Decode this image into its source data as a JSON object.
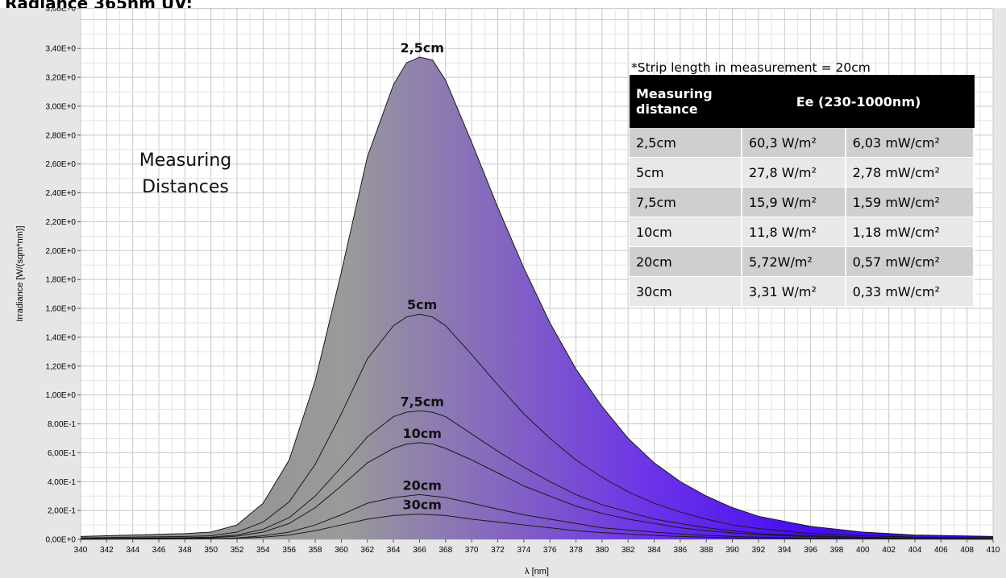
{
  "page": {
    "title": "Radiance 365nm UV:"
  },
  "chart_data": {
    "type": "area",
    "xlabel": "λ [nm]",
    "ylabel": "Irradiance [W/(sqm*nm)]",
    "xlim": [
      340,
      410
    ],
    "ylim": [
      0,
      3.68
    ],
    "x_ticks": [
      "340",
      "342",
      "344",
      "346",
      "348",
      "350",
      "352",
      "354",
      "356",
      "358",
      "360",
      "362",
      "364",
      "366",
      "368",
      "370",
      "372",
      "374",
      "376",
      "378",
      "380",
      "382",
      "384",
      "386",
      "388",
      "390",
      "392",
      "394",
      "396",
      "398",
      "400",
      "402",
      "404",
      "406",
      "408",
      "410"
    ],
    "y_ticks": [
      "0,00E+0",
      "2,00E-1",
      "4,00E-1",
      "6,00E-1",
      "8,00E-1",
      "1,00E+0",
      "1,20E+0",
      "1,40E+0",
      "1,60E+0",
      "1,80E+0",
      "2,00E+0",
      "2,20E+0",
      "2,40E+0",
      "2,60E+0",
      "2,80E+0",
      "3,00E+0",
      "3,20E+0",
      "3,40E+0",
      "3,68E+0"
    ],
    "y_tick_values": [
      0,
      0.2,
      0.4,
      0.6,
      0.8,
      1.0,
      1.2,
      1.4,
      1.6,
      1.8,
      2.0,
      2.2,
      2.4,
      2.6,
      2.8,
      3.0,
      3.2,
      3.4,
      3.68
    ],
    "grid": true,
    "fill_colors": {
      "gray": "#8c8c8c",
      "violet": "#7a42c6",
      "blue": "#3c0af0"
    },
    "x": [
      340,
      344,
      348,
      350,
      352,
      354,
      356,
      358,
      360,
      362,
      364,
      365,
      366,
      367,
      368,
      370,
      372,
      374,
      376,
      378,
      380,
      382,
      384,
      386,
      388,
      390,
      392,
      396,
      400,
      404,
      410
    ],
    "series": [
      {
        "name": "2,5cm",
        "values": [
          0.02,
          0.03,
          0.04,
          0.05,
          0.1,
          0.25,
          0.55,
          1.1,
          1.85,
          2.65,
          3.15,
          3.3,
          3.34,
          3.32,
          3.18,
          2.75,
          2.3,
          1.88,
          1.5,
          1.18,
          0.92,
          0.7,
          0.53,
          0.4,
          0.3,
          0.22,
          0.16,
          0.09,
          0.05,
          0.03,
          0.02
        ]
      },
      {
        "name": "5cm",
        "values": [
          0.01,
          0.015,
          0.02,
          0.025,
          0.05,
          0.12,
          0.26,
          0.52,
          0.87,
          1.25,
          1.48,
          1.54,
          1.56,
          1.54,
          1.48,
          1.28,
          1.07,
          0.87,
          0.7,
          0.55,
          0.43,
          0.33,
          0.25,
          0.19,
          0.14,
          0.1,
          0.075,
          0.04,
          0.025,
          0.015,
          0.01
        ]
      },
      {
        "name": "7,5cm",
        "values": [
          0.005,
          0.008,
          0.012,
          0.015,
          0.03,
          0.07,
          0.15,
          0.3,
          0.5,
          0.71,
          0.85,
          0.88,
          0.89,
          0.88,
          0.85,
          0.73,
          0.61,
          0.5,
          0.4,
          0.31,
          0.24,
          0.19,
          0.14,
          0.11,
          0.08,
          0.06,
          0.04,
          0.025,
          0.015,
          0.008,
          0.005
        ]
      },
      {
        "name": "10cm",
        "values": [
          0.004,
          0.006,
          0.009,
          0.011,
          0.022,
          0.05,
          0.11,
          0.22,
          0.37,
          0.53,
          0.63,
          0.66,
          0.67,
          0.66,
          0.63,
          0.55,
          0.46,
          0.37,
          0.3,
          0.23,
          0.18,
          0.14,
          0.11,
          0.08,
          0.06,
          0.045,
          0.032,
          0.018,
          0.011,
          0.006,
          0.004
        ]
      },
      {
        "name": "20cm",
        "values": [
          0.002,
          0.003,
          0.004,
          0.005,
          0.01,
          0.025,
          0.05,
          0.1,
          0.17,
          0.25,
          0.29,
          0.3,
          0.31,
          0.3,
          0.29,
          0.25,
          0.21,
          0.17,
          0.14,
          0.11,
          0.08,
          0.065,
          0.05,
          0.037,
          0.028,
          0.02,
          0.015,
          0.008,
          0.005,
          0.003,
          0.002
        ]
      },
      {
        "name": "30cm",
        "values": [
          0.001,
          0.002,
          0.003,
          0.004,
          0.007,
          0.015,
          0.03,
          0.06,
          0.1,
          0.14,
          0.165,
          0.17,
          0.175,
          0.17,
          0.165,
          0.14,
          0.12,
          0.1,
          0.08,
          0.06,
          0.047,
          0.036,
          0.027,
          0.02,
          0.015,
          0.011,
          0.008,
          0.004,
          0.003,
          0.002,
          0.001
        ]
      }
    ],
    "annotation": [
      "Measuring",
      "Distances"
    ]
  },
  "table": {
    "note": "*Strip length in measurement = 20cm",
    "headers": [
      "Measuring distance",
      "Ee  (230-1000nm)"
    ],
    "rows": [
      [
        "2,5cm",
        "60,3 W/m²",
        "6,03 mW/cm²"
      ],
      [
        "5cm",
        "27,8 W/m²",
        "2,78 mW/cm²"
      ],
      [
        "7,5cm",
        "15,9 W/m²",
        "1,59 mW/cm²"
      ],
      [
        "10cm",
        "11,8 W/m²",
        "1,18 mW/cm²"
      ],
      [
        "20cm",
        "5,72W/m²",
        "0,57 mW/cm²"
      ],
      [
        "30cm",
        "3,31 W/m²",
        "0,33 mW/cm²"
      ]
    ]
  }
}
